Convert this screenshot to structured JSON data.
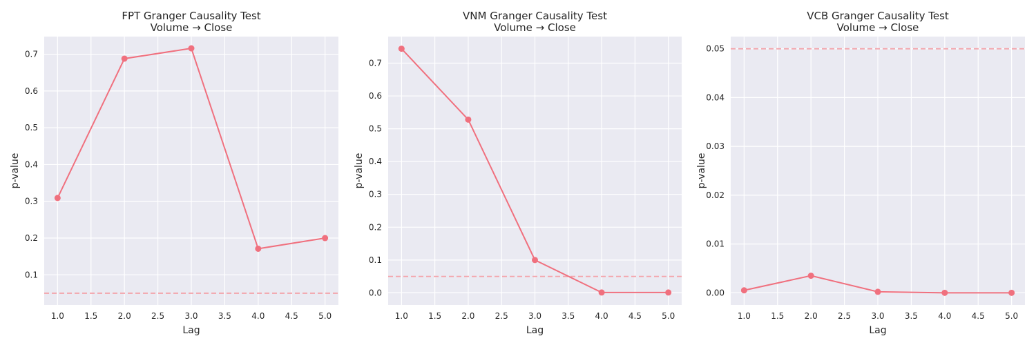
{
  "chart_data": [
    {
      "type": "line",
      "title": "FPT Granger Causality Test",
      "subtitle": "Volume → Close",
      "xlabel": "Lag",
      "ylabel": "p-value",
      "x": [
        1,
        2,
        3,
        4,
        5
      ],
      "values": [
        0.309,
        0.688,
        0.716,
        0.171,
        0.2
      ],
      "reference_line": 0.05,
      "xlim": [
        0.8,
        5.2
      ],
      "ylim": [
        0.018,
        0.748
      ],
      "xticks": [
        "1.0",
        "1.5",
        "2.0",
        "2.5",
        "3.0",
        "3.5",
        "4.0",
        "4.5",
        "5.0"
      ],
      "yticks": [
        "0.1",
        "0.2",
        "0.3",
        "0.4",
        "0.5",
        "0.6",
        "0.7"
      ],
      "grid": true
    },
    {
      "type": "line",
      "title": "VNM Granger Causality Test",
      "subtitle": "Volume → Close",
      "xlabel": "Lag",
      "ylabel": "p-value",
      "x": [
        1,
        2,
        3,
        4,
        5
      ],
      "values": [
        0.744,
        0.528,
        0.1,
        0.001,
        0.001
      ],
      "reference_line": 0.05,
      "xlim": [
        0.8,
        5.2
      ],
      "ylim": [
        -0.037,
        0.781
      ],
      "xticks": [
        "1.0",
        "1.5",
        "2.0",
        "2.5",
        "3.0",
        "3.5",
        "4.0",
        "4.5",
        "5.0"
      ],
      "yticks": [
        "0.0",
        "0.1",
        "0.2",
        "0.3",
        "0.4",
        "0.5",
        "0.6",
        "0.7"
      ],
      "grid": true
    },
    {
      "type": "line",
      "title": "VCB Granger Causality Test",
      "subtitle": "Volume → Close",
      "xlabel": "Lag",
      "ylabel": "p-value",
      "x": [
        1,
        2,
        3,
        4,
        5
      ],
      "values": [
        0.0005,
        0.0035,
        0.0002,
        0.0,
        0.0
      ],
      "reference_line": 0.05,
      "xlim": [
        0.8,
        5.2
      ],
      "ylim": [
        -0.0025,
        0.0525
      ],
      "xticks": [
        "1.0",
        "1.5",
        "2.0",
        "2.5",
        "3.0",
        "3.5",
        "4.0",
        "4.5",
        "5.0"
      ],
      "yticks": [
        "0.00",
        "0.01",
        "0.02",
        "0.03",
        "0.04",
        "0.05"
      ],
      "grid": true
    }
  ],
  "style": {
    "plot_background": "#eaeaf2",
    "grid_color": "#ffffff",
    "line_color": "#f0707e",
    "reference_color": "#f4a3aa",
    "text_color": "#262626"
  }
}
